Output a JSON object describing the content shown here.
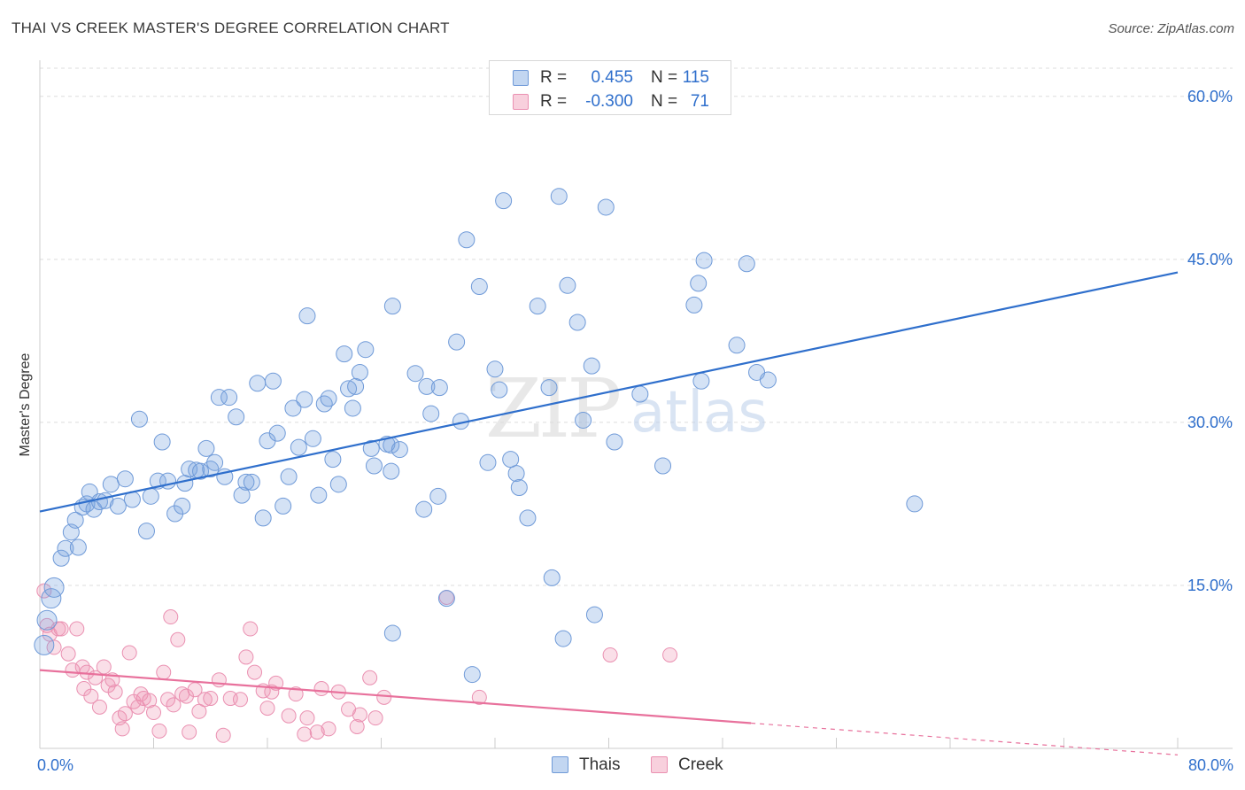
{
  "header": {
    "title": "THAI VS CREEK MASTER'S DEGREE CORRELATION CHART",
    "source": "Source: ZipAtlas.com"
  },
  "colors": {
    "blue": "#2f6fcc",
    "blue_fill": "rgba(120,165,225,0.32)",
    "blue_stroke": "#6f9ad8",
    "pink": "#e8719c",
    "pink_fill": "rgba(240,150,180,0.30)",
    "pink_stroke": "#ea90b1",
    "grid": "#dddddd",
    "axis_label": "#2f6fcc"
  },
  "legend_top": {
    "rows": [
      {
        "r_label": "R =",
        "r_value": "0.455",
        "n_label": "N =",
        "n_value": "115"
      },
      {
        "r_label": "R =",
        "r_value": "-0.300",
        "n_label": "N =",
        "n_value": "71"
      }
    ]
  },
  "legend_bottom": {
    "items": [
      {
        "label": "Thais"
      },
      {
        "label": "Creek"
      }
    ]
  },
  "chart_data": {
    "type": "scatter",
    "title": "THAI VS CREEK MASTER'S DEGREE CORRELATION CHART",
    "ylabel": "Master's Degree",
    "xlabel": "",
    "xlim": [
      0,
      80
    ],
    "ylim": [
      0,
      63
    ],
    "x_tick_labels": [
      "0.0%",
      "80.0%"
    ],
    "y_ticks": [
      15,
      30,
      45,
      60
    ],
    "y_tick_labels": [
      "15.0%",
      "30.0%",
      "45.0%",
      "60.0%"
    ],
    "grid": true,
    "watermark": {
      "zip": "ZIP",
      "atlas": "atlas"
    },
    "series": [
      {
        "name": "Thais",
        "R": 0.455,
        "N": 115,
        "trend": {
          "x0": 0,
          "y0": 21.8,
          "x1": 80,
          "y1": 43.8
        },
        "points": [
          [
            0.3,
            9.5
          ],
          [
            0.5,
            11.8
          ],
          [
            0.8,
            13.8
          ],
          [
            1.0,
            14.8
          ],
          [
            1.5,
            17.5
          ],
          [
            1.8,
            18.4
          ],
          [
            2.2,
            19.9
          ],
          [
            2.7,
            18.5
          ],
          [
            2.5,
            21.0
          ],
          [
            3.0,
            22.2
          ],
          [
            3.3,
            22.5
          ],
          [
            3.5,
            23.6
          ],
          [
            3.8,
            22.0
          ],
          [
            4.2,
            22.7
          ],
          [
            4.6,
            22.8
          ],
          [
            5.0,
            24.3
          ],
          [
            5.5,
            22.3
          ],
          [
            6.0,
            24.8
          ],
          [
            6.5,
            22.9
          ],
          [
            7.0,
            30.3
          ],
          [
            7.5,
            20.0
          ],
          [
            7.8,
            23.2
          ],
          [
            8.3,
            24.6
          ],
          [
            8.6,
            28.2
          ],
          [
            9.0,
            24.6
          ],
          [
            9.5,
            21.6
          ],
          [
            10.0,
            22.3
          ],
          [
            10.2,
            24.4
          ],
          [
            10.5,
            25.7
          ],
          [
            11.0,
            25.6
          ],
          [
            11.3,
            25.5
          ],
          [
            11.7,
            27.6
          ],
          [
            12.0,
            25.7
          ],
          [
            12.3,
            26.3
          ],
          [
            12.6,
            32.3
          ],
          [
            13.0,
            25.0
          ],
          [
            13.3,
            32.3
          ],
          [
            13.8,
            30.5
          ],
          [
            14.2,
            23.3
          ],
          [
            14.5,
            24.5
          ],
          [
            14.9,
            24.5
          ],
          [
            15.3,
            33.6
          ],
          [
            15.7,
            21.2
          ],
          [
            16.0,
            28.3
          ],
          [
            16.4,
            33.8
          ],
          [
            16.7,
            29.0
          ],
          [
            17.1,
            22.3
          ],
          [
            17.5,
            25.0
          ],
          [
            17.8,
            31.3
          ],
          [
            18.2,
            27.7
          ],
          [
            18.6,
            32.1
          ],
          [
            18.8,
            39.8
          ],
          [
            19.2,
            28.5
          ],
          [
            19.6,
            23.3
          ],
          [
            20.0,
            31.7
          ],
          [
            20.3,
            32.2
          ],
          [
            20.6,
            26.6
          ],
          [
            21.0,
            24.3
          ],
          [
            21.4,
            36.3
          ],
          [
            21.7,
            33.1
          ],
          [
            22.0,
            31.3
          ],
          [
            22.2,
            33.3
          ],
          [
            22.5,
            34.6
          ],
          [
            22.9,
            36.7
          ],
          [
            23.3,
            27.6
          ],
          [
            23.5,
            26.0
          ],
          [
            24.7,
            25.5
          ],
          [
            24.8,
            40.7
          ],
          [
            24.4,
            28.0
          ],
          [
            24.7,
            27.9
          ],
          [
            25.3,
            27.5
          ],
          [
            26.4,
            34.5
          ],
          [
            27.0,
            22.0
          ],
          [
            27.2,
            33.3
          ],
          [
            27.5,
            30.8
          ],
          [
            28.0,
            23.2
          ],
          [
            28.1,
            33.2
          ],
          [
            29.3,
            37.4
          ],
          [
            29.6,
            30.1
          ],
          [
            30.0,
            46.8
          ],
          [
            30.4,
            6.8
          ],
          [
            30.9,
            42.5
          ],
          [
            31.5,
            26.3
          ],
          [
            32.0,
            34.9
          ],
          [
            32.3,
            33.0
          ],
          [
            32.6,
            50.4
          ],
          [
            33.1,
            26.6
          ],
          [
            33.5,
            25.3
          ],
          [
            33.7,
            24.0
          ],
          [
            34.3,
            21.2
          ],
          [
            35.0,
            40.7
          ],
          [
            35.8,
            33.2
          ],
          [
            36.0,
            15.7
          ],
          [
            36.5,
            50.8
          ],
          [
            36.8,
            10.1
          ],
          [
            37.1,
            42.6
          ],
          [
            37.8,
            39.2
          ],
          [
            38.2,
            30.2
          ],
          [
            38.8,
            35.2
          ],
          [
            39.0,
            12.3
          ],
          [
            39.8,
            49.8
          ],
          [
            40.4,
            28.2
          ],
          [
            42.2,
            32.6
          ],
          [
            43.8,
            26.0
          ],
          [
            46.0,
            40.8
          ],
          [
            46.3,
            42.8
          ],
          [
            46.5,
            33.8
          ],
          [
            46.7,
            44.9
          ],
          [
            49.0,
            37.1
          ],
          [
            49.7,
            44.6
          ],
          [
            50.4,
            34.6
          ],
          [
            51.2,
            33.9
          ],
          [
            61.5,
            22.5
          ],
          [
            28.6,
            13.8
          ],
          [
            24.8,
            10.6
          ]
        ]
      },
      {
        "name": "Creek",
        "R": -0.3,
        "N": 71,
        "trend": {
          "x0": 0,
          "y0": 7.2,
          "x1": 80,
          "y1": -0.6,
          "solid_until_x": 50
        },
        "points": [
          [
            0.3,
            14.5
          ],
          [
            0.5,
            11.3
          ],
          [
            0.7,
            10.5
          ],
          [
            1.0,
            9.3
          ],
          [
            1.3,
            11.0
          ],
          [
            1.5,
            11.0
          ],
          [
            2.0,
            8.7
          ],
          [
            2.3,
            7.2
          ],
          [
            2.6,
            11.0
          ],
          [
            3.0,
            7.5
          ],
          [
            3.1,
            5.5
          ],
          [
            3.3,
            7.0
          ],
          [
            3.6,
            4.8
          ],
          [
            3.9,
            6.5
          ],
          [
            4.2,
            3.8
          ],
          [
            4.5,
            7.5
          ],
          [
            4.8,
            5.8
          ],
          [
            5.1,
            6.3
          ],
          [
            5.3,
            5.2
          ],
          [
            5.6,
            2.8
          ],
          [
            5.8,
            1.8
          ],
          [
            6.0,
            3.2
          ],
          [
            6.3,
            8.8
          ],
          [
            6.6,
            4.3
          ],
          [
            6.9,
            3.8
          ],
          [
            7.1,
            5.0
          ],
          [
            7.3,
            4.6
          ],
          [
            7.7,
            4.4
          ],
          [
            8.0,
            3.3
          ],
          [
            8.4,
            1.6
          ],
          [
            8.7,
            7.0
          ],
          [
            9.0,
            4.5
          ],
          [
            9.2,
            12.1
          ],
          [
            9.4,
            4.0
          ],
          [
            9.7,
            10.0
          ],
          [
            10.0,
            5.0
          ],
          [
            10.3,
            4.8
          ],
          [
            10.5,
            1.5
          ],
          [
            10.9,
            5.4
          ],
          [
            11.2,
            3.4
          ],
          [
            11.6,
            4.5
          ],
          [
            12.0,
            4.6
          ],
          [
            12.6,
            6.3
          ],
          [
            12.9,
            1.2
          ],
          [
            13.4,
            4.6
          ],
          [
            14.1,
            4.5
          ],
          [
            14.5,
            8.4
          ],
          [
            14.8,
            11.0
          ],
          [
            15.1,
            7.0
          ],
          [
            15.7,
            5.3
          ],
          [
            16.0,
            3.7
          ],
          [
            16.3,
            5.2
          ],
          [
            16.6,
            6.0
          ],
          [
            17.5,
            3.0
          ],
          [
            18.0,
            5.0
          ],
          [
            18.6,
            1.3
          ],
          [
            18.8,
            2.8
          ],
          [
            19.5,
            1.5
          ],
          [
            19.8,
            5.5
          ],
          [
            20.3,
            1.8
          ],
          [
            21.0,
            5.2
          ],
          [
            21.7,
            3.6
          ],
          [
            22.3,
            2.0
          ],
          [
            22.5,
            3.1
          ],
          [
            23.2,
            6.5
          ],
          [
            23.6,
            2.8
          ],
          [
            24.2,
            4.7
          ],
          [
            28.6,
            13.9
          ],
          [
            30.9,
            4.7
          ],
          [
            40.1,
            8.6
          ],
          [
            44.3,
            8.6
          ]
        ]
      }
    ]
  }
}
